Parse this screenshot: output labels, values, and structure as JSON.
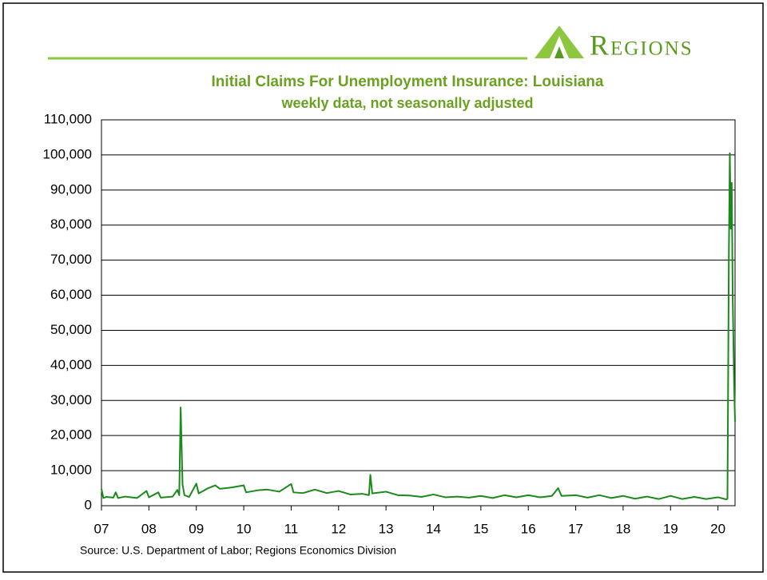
{
  "chart_data": {
    "type": "line",
    "brand": "Regions",
    "title": "Initial Claims For Unemployment Insurance: Louisiana",
    "subtitle": "weekly data, not seasonally adjusted",
    "source": "Source: U.S. Department of Labor; Regions Economics Division",
    "grid": true,
    "xlim": [
      2007,
      2020.36
    ],
    "ylim": [
      0,
      110000
    ],
    "xticks": [
      {
        "value": 2007,
        "label": "07"
      },
      {
        "value": 2008,
        "label": "08"
      },
      {
        "value": 2009,
        "label": "09"
      },
      {
        "value": 2010,
        "label": "10"
      },
      {
        "value": 2011,
        "label": "11"
      },
      {
        "value": 2012,
        "label": "12"
      },
      {
        "value": 2013,
        "label": "13"
      },
      {
        "value": 2014,
        "label": "14"
      },
      {
        "value": 2015,
        "label": "15"
      },
      {
        "value": 2016,
        "label": "16"
      },
      {
        "value": 2017,
        "label": "17"
      },
      {
        "value": 2018,
        "label": "18"
      },
      {
        "value": 2019,
        "label": "19"
      },
      {
        "value": 2020,
        "label": "20"
      }
    ],
    "yticks": [
      0,
      {
        "value": 10000,
        "label": "10,000"
      },
      {
        "value": 20000,
        "label": "20,000"
      },
      {
        "value": 30000,
        "label": "30,000"
      },
      {
        "value": 40000,
        "label": "40,000"
      },
      {
        "value": 50000,
        "label": "50,000"
      },
      {
        "value": 60000,
        "label": "60,000"
      },
      {
        "value": 70000,
        "label": "70,000"
      },
      {
        "value": 80000,
        "label": "80,000"
      },
      {
        "value": 90000,
        "label": "90,000"
      },
      {
        "value": 100000,
        "label": "100,000"
      },
      {
        "value": 110000,
        "label": "110,000"
      }
    ],
    "series": [
      {
        "color": "#1a8a1a",
        "x": [
          2007.0,
          2007.04,
          2007.1,
          2007.25,
          2007.3,
          2007.35,
          2007.5,
          2007.75,
          2007.95,
          2008.0,
          2008.2,
          2008.25,
          2008.5,
          2008.6,
          2008.64,
          2008.67,
          2008.71,
          2008.75,
          2008.85,
          2009.0,
          2009.05,
          2009.25,
          2009.4,
          2009.5,
          2009.75,
          2010.0,
          2010.05,
          2010.3,
          2010.5,
          2010.75,
          2011.0,
          2011.05,
          2011.25,
          2011.5,
          2011.75,
          2012.0,
          2012.25,
          2012.5,
          2012.64,
          2012.67,
          2012.71,
          2013.0,
          2013.25,
          2013.5,
          2013.75,
          2014.0,
          2014.25,
          2014.5,
          2014.75,
          2015.0,
          2015.25,
          2015.5,
          2015.75,
          2016.0,
          2016.25,
          2016.5,
          2016.63,
          2016.7,
          2017.0,
          2017.25,
          2017.5,
          2017.75,
          2018.0,
          2018.25,
          2018.5,
          2018.75,
          2019.0,
          2019.25,
          2019.5,
          2019.75,
          2020.0,
          2020.18,
          2020.2,
          2020.23,
          2020.25,
          2020.27,
          2020.29,
          2020.31,
          2020.34,
          2020.36
        ],
        "values": [
          4800,
          2200,
          2500,
          2300,
          3800,
          2200,
          2600,
          2200,
          4200,
          2400,
          3800,
          2300,
          2600,
          4500,
          3000,
          28000,
          6000,
          3000,
          2500,
          6300,
          3500,
          5000,
          5800,
          4800,
          5200,
          5800,
          3800,
          4400,
          4600,
          4000,
          6200,
          3800,
          3600,
          4600,
          3600,
          4200,
          3200,
          3400,
          3000,
          8800,
          3500,
          4000,
          3000,
          2900,
          2500,
          3200,
          2400,
          2600,
          2300,
          2800,
          2200,
          3000,
          2400,
          3000,
          2400,
          2800,
          5000,
          2800,
          3000,
          2300,
          3000,
          2200,
          2800,
          2000,
          2600,
          1900,
          2800,
          1900,
          2500,
          1900,
          2400,
          1800,
          2000,
          72000,
          100500,
          79000,
          92000,
          60000,
          35000,
          24000
        ]
      }
    ]
  }
}
